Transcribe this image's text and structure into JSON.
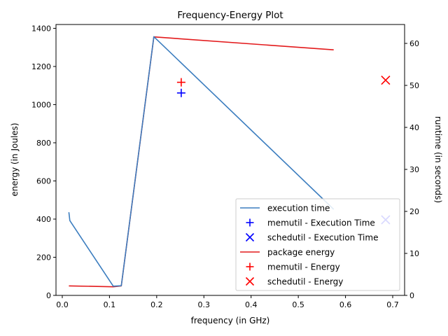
{
  "chart_data": {
    "type": "line",
    "title": "Frequency-Energy Plot",
    "xlabel": "frequency (in GHz)",
    "ylabel_left": "energy (in Joules)",
    "ylabel_right": "runtime (in seconds)",
    "xlim": [
      -0.0133,
      0.7252
    ],
    "ylim_left": [
      0,
      1420
    ],
    "ylim_right": [
      0,
      64.5
    ],
    "x_ticks": [
      0.0,
      0.1,
      0.2,
      0.3,
      0.4,
      0.5,
      0.6,
      0.7
    ],
    "x_tick_labels": [
      "0.0",
      "0.1",
      "0.2",
      "0.3",
      "0.4",
      "0.5",
      "0.6",
      "0.7"
    ],
    "y_left_ticks": [
      0,
      200,
      400,
      600,
      800,
      1000,
      1200,
      1400
    ],
    "y_left_tick_labels": [
      "0",
      "200",
      "400",
      "600",
      "800",
      "1000",
      "1200",
      "1400"
    ],
    "y_right_ticks": [
      0,
      10,
      20,
      30,
      40,
      50,
      60
    ],
    "y_right_tick_labels": [
      "0",
      "10",
      "20",
      "30",
      "40",
      "50",
      "60"
    ],
    "grid": false,
    "legend_position": "lower-right",
    "series": [
      {
        "name": "execution time",
        "kind": "line",
        "axis": "right",
        "color": "#3b7dbf",
        "points": [
          [
            0.014,
            19.8
          ],
          [
            0.016,
            17.8
          ],
          [
            0.108,
            2.2
          ],
          [
            0.125,
            2.3
          ],
          [
            0.194,
            61.6
          ],
          [
            0.575,
            20.5
          ]
        ]
      },
      {
        "name": "memutil - Execution Time",
        "kind": "marker",
        "marker": "plus",
        "axis": "right",
        "color": "#0000ff",
        "points": [
          [
            0.252,
            48.2
          ]
        ]
      },
      {
        "name": "schedutil - Execution Time",
        "kind": "marker",
        "marker": "x",
        "axis": "right",
        "color": "#0000ff",
        "points": [
          [
            0.685,
            18.0
          ]
        ]
      },
      {
        "name": "package energy",
        "kind": "line",
        "axis": "left",
        "color": "#e31a1c",
        "points": [
          [
            0.014,
            50
          ],
          [
            0.108,
            45
          ],
          [
            0.125,
            50
          ],
          [
            0.194,
            1355
          ],
          [
            0.575,
            1287
          ]
        ]
      },
      {
        "name": "memutil - Energy",
        "kind": "marker",
        "marker": "plus",
        "axis": "left",
        "color": "#ff0000",
        "points": [
          [
            0.252,
            1117
          ]
        ]
      },
      {
        "name": "schedutil - Energy",
        "kind": "marker",
        "marker": "x",
        "axis": "left",
        "color": "#ff0000",
        "points": [
          [
            0.685,
            1128
          ]
        ]
      }
    ]
  }
}
